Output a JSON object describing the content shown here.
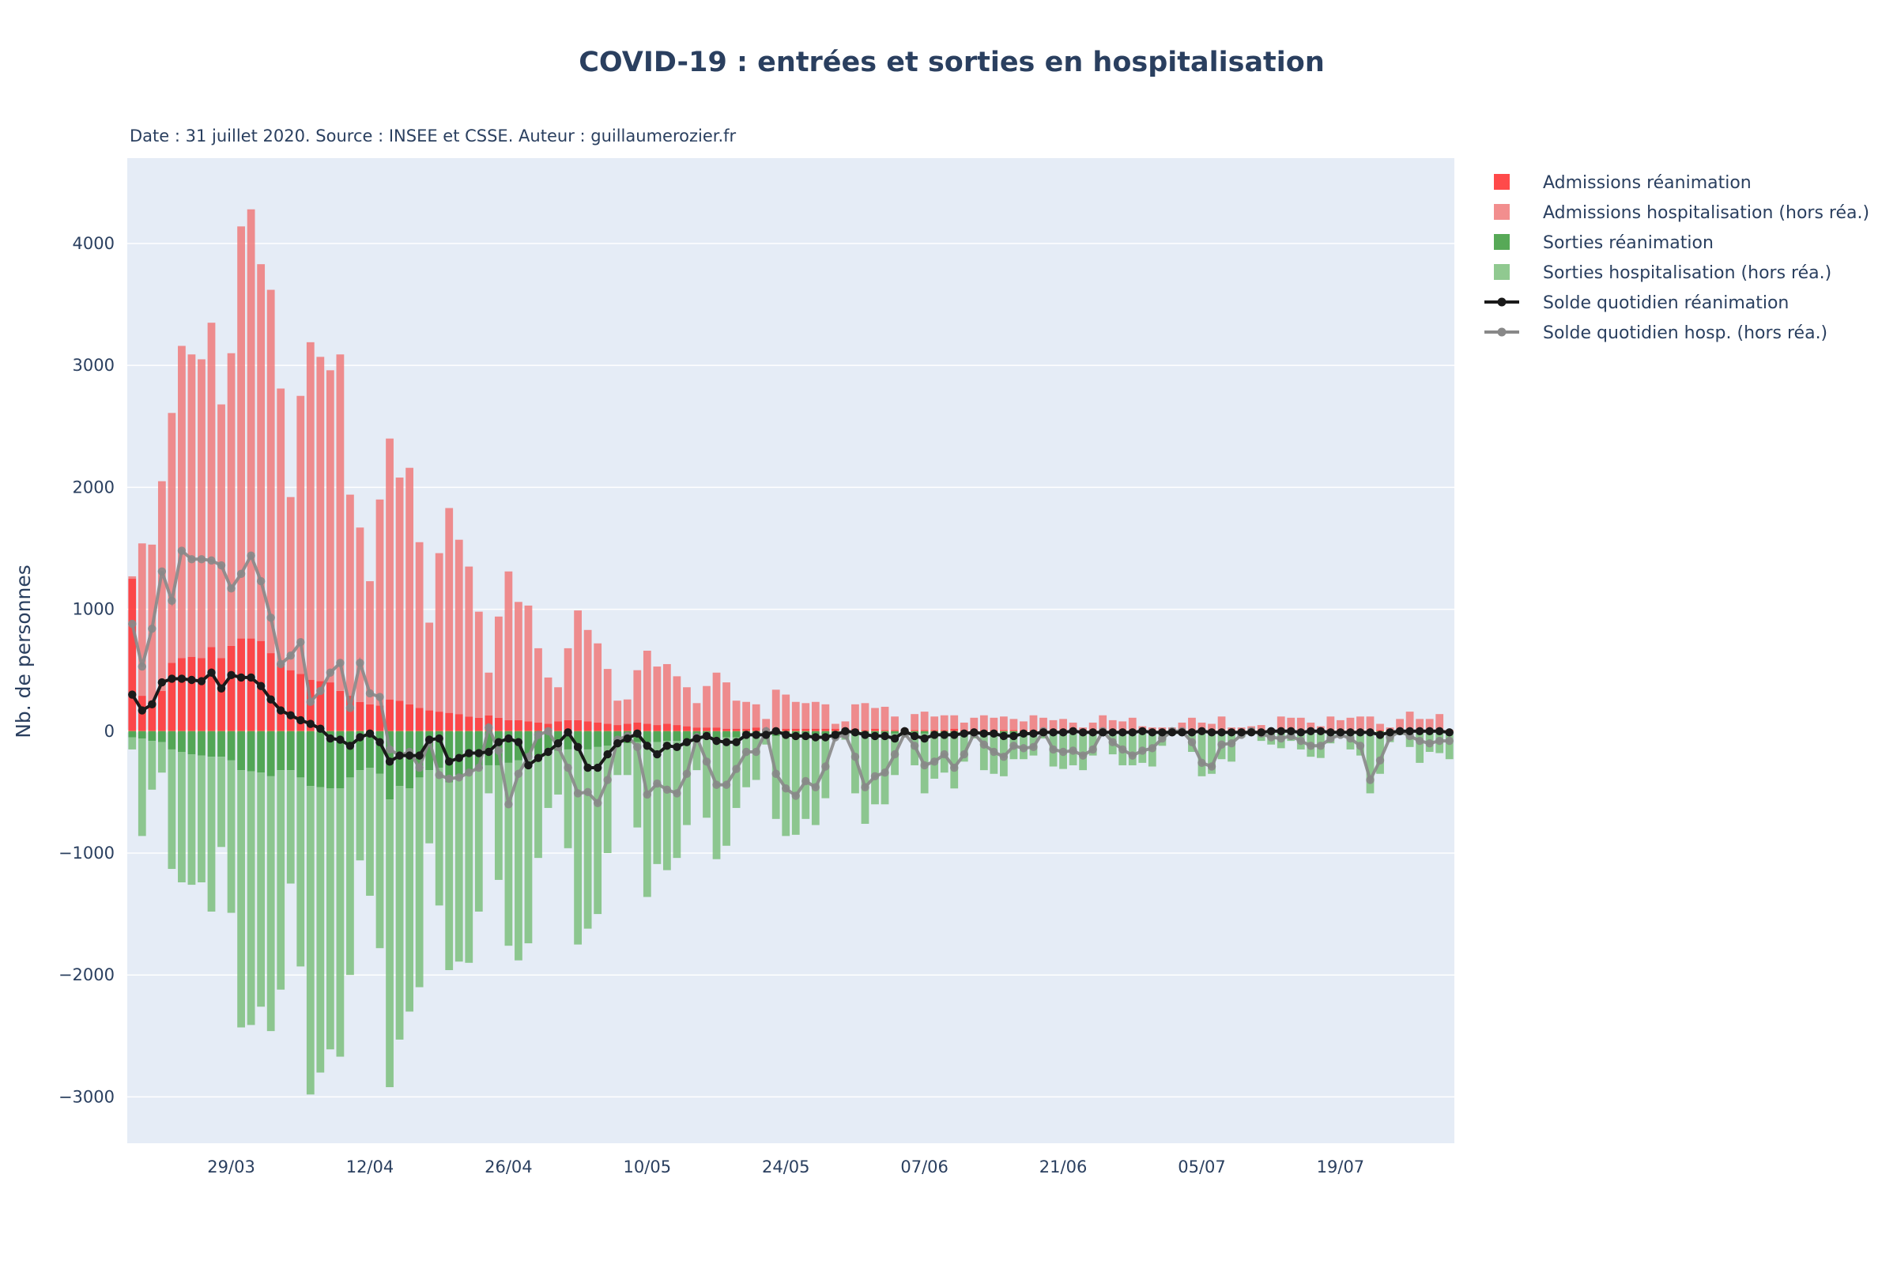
{
  "chart_data": {
    "type": "bar",
    "title": "COVID-19 : entrées et sorties en hospitalisation",
    "subtitle": "Date : 31 juillet 2020. Source : INSEE et CSSE. Auteur : guillaumerozier.fr",
    "ylabel": "Nb. de personnes",
    "xlabel": "",
    "x_start": "2020-03-19",
    "x_end": "2020-07-30",
    "x_tick_dates": [
      "2020-03-29",
      "2020-04-12",
      "2020-04-26",
      "2020-05-10",
      "2020-05-24",
      "2020-06-07",
      "2020-06-21",
      "2020-07-05",
      "2020-07-19"
    ],
    "x_tick_labels": [
      "29/03",
      "12/04",
      "26/04",
      "10/05",
      "24/05",
      "07/06",
      "21/06",
      "05/07",
      "19/07"
    ],
    "y_tick_values": [
      -3000,
      -2000,
      -1000,
      0,
      1000,
      2000,
      3000,
      4000
    ],
    "y_tick_labels": [
      "−3000",
      "−2000",
      "−1000",
      "0",
      "1000",
      "2000",
      "3000",
      "4000"
    ],
    "ylim": [
      -3380,
      4700
    ],
    "grid": true,
    "barmode": "relative",
    "legend_position": "right",
    "colors": {
      "admissions_rea": "#ff2a2a",
      "admissions_hosp": "#f07a7a",
      "sorties_rea": "#3a9a3a",
      "sorties_hosp": "#7cbf7c",
      "solde_rea": "#1a1a1a",
      "solde_hosp": "#888888",
      "plot_bg": "#e5ecf6",
      "grid": "#ffffff",
      "title": "#2a3f5f"
    },
    "series": [
      {
        "name": "Admissions réanimation",
        "type": "bar",
        "color_key": "admissions_rea",
        "values": [
          1250,
          290,
          250,
          330,
          560,
          600,
          610,
          600,
          690,
          600,
          700,
          760,
          760,
          740,
          640,
          560,
          500,
          470,
          420,
          410,
          400,
          330,
          290,
          240,
          220,
          210,
          260,
          250,
          220,
          190,
          170,
          160,
          150,
          140,
          120,
          110,
          130,
          110,
          90,
          90,
          80,
          70,
          60,
          80,
          90,
          90,
          80,
          70,
          60,
          50,
          60,
          70,
          60,
          50,
          60,
          50,
          40,
          30,
          30,
          30,
          20,
          20,
          20,
          30,
          20,
          20,
          20,
          20,
          20,
          20,
          20,
          20,
          20,
          20,
          10,
          20,
          10,
          10,
          10,
          10,
          10,
          10,
          10,
          20,
          10,
          10,
          10,
          10,
          10,
          10,
          10,
          10,
          10,
          10,
          10,
          10,
          10,
          10,
          10,
          10,
          10,
          10,
          10,
          10,
          10,
          10,
          10,
          10,
          10,
          10,
          10,
          10,
          10,
          10,
          10,
          10,
          10,
          10,
          10,
          10,
          10,
          10,
          10,
          10,
          10,
          10,
          10,
          10,
          10,
          10,
          10,
          10,
          10,
          10
        ]
      },
      {
        "name": "Admissions hospitalisation (hors réa.)",
        "type": "bar",
        "color_key": "admissions_hosp",
        "values": [
          20,
          1250,
          1280,
          1720,
          2050,
          2560,
          2480,
          2450,
          2660,
          2080,
          2400,
          3380,
          3520,
          3090,
          2980,
          2250,
          1420,
          2280,
          2770,
          2660,
          2560,
          2760,
          1650,
          1430,
          1010,
          1690,
          2140,
          1830,
          1940,
          1360,
          720,
          1300,
          1680,
          1430,
          1230,
          870,
          350,
          830,
          1220,
          970,
          950,
          610,
          380,
          280,
          590,
          900,
          750,
          650,
          450,
          200,
          200,
          430,
          600,
          480,
          490,
          400,
          320,
          200,
          340,
          450,
          380,
          230,
          220,
          190,
          80,
          320,
          280,
          220,
          210,
          220,
          200,
          40,
          60,
          200,
          220,
          170,
          190,
          110,
          10,
          130,
          150,
          110,
          120,
          110,
          60,
          100,
          120,
          100,
          110,
          90,
          70,
          120,
          100,
          80,
          90,
          60,
          20,
          60,
          120,
          80,
          70,
          100,
          30,
          20,
          20,
          20,
          60,
          100,
          60,
          50,
          110,
          20,
          20,
          30,
          40,
          10,
          110,
          100,
          100,
          60,
          30,
          110,
          80,
          100,
          110,
          110,
          50,
          20,
          90,
          150,
          90,
          90,
          130
        ]
      },
      {
        "name": "Sorties réanimation",
        "type": "bar",
        "color_key": "sorties_rea",
        "values": [
          -50,
          -60,
          -80,
          -90,
          -150,
          -170,
          -190,
          -200,
          -210,
          -210,
          -240,
          -320,
          -330,
          -340,
          -370,
          -320,
          -320,
          -380,
          -450,
          -460,
          -470,
          -470,
          -380,
          -320,
          -300,
          -350,
          -560,
          -450,
          -470,
          -380,
          -320,
          -300,
          -420,
          -360,
          -340,
          -310,
          -280,
          -280,
          -260,
          -240,
          -210,
          -200,
          -180,
          -160,
          -150,
          -150,
          -150,
          -130,
          -120,
          -110,
          -100,
          -90,
          -90,
          -90,
          -80,
          -80,
          -70,
          -60,
          -60,
          -60,
          -50,
          -50,
          -50,
          -40,
          -40,
          -40,
          -40,
          -30,
          -30,
          -30,
          -30,
          -30,
          -30,
          -30,
          -20,
          -20,
          -20,
          -20,
          -20,
          -20,
          -20,
          -20,
          -20,
          -20,
          -20,
          -20,
          -20,
          -20,
          -20,
          -20,
          -10,
          -10,
          -10,
          -10,
          -10,
          -10,
          -10,
          -10,
          -10,
          -10,
          -10,
          -10,
          -10,
          -10,
          -10,
          -10,
          -10,
          -10,
          -10,
          -10,
          -10,
          -10,
          -10,
          -10,
          -10,
          -10,
          -10,
          -10,
          -10,
          -10,
          -10,
          -10,
          -10,
          -10,
          -10,
          -10,
          -10,
          -10,
          -10,
          -10,
          -10,
          -10,
          -10,
          -10
        ]
      },
      {
        "name": "Sorties hospitalisation (hors réa.)",
        "type": "bar",
        "color_key": "sorties_hosp",
        "values": [
          -100,
          -800,
          -400,
          -250,
          -980,
          -1070,
          -1070,
          -1040,
          -1270,
          -740,
          -1250,
          -2110,
          -2080,
          -1920,
          -2090,
          -1800,
          -930,
          -1550,
          -2530,
          -2340,
          -2140,
          -2200,
          -1620,
          -740,
          -1050,
          -1430,
          -2360,
          -2080,
          -1830,
          -1720,
          -600,
          -1130,
          -1540,
          -1530,
          -1560,
          -1170,
          -230,
          -940,
          -1500,
          -1640,
          -1530,
          -840,
          -450,
          -360,
          -810,
          -1600,
          -1470,
          -1370,
          -880,
          -250,
          -260,
          -700,
          -1270,
          -1000,
          -1060,
          -960,
          -700,
          -260,
          -650,
          -990,
          -890,
          -580,
          -410,
          -360,
          -70,
          -680,
          -820,
          -820,
          -690,
          -740,
          -520,
          -30,
          -40,
          -480,
          -740,
          -580,
          -580,
          -340,
          -20,
          -260,
          -490,
          -370,
          -320,
          -450,
          -230,
          -40,
          -300,
          -330,
          -350,
          -210,
          -220,
          -190,
          -50,
          -280,
          -300,
          -270,
          -310,
          -190,
          -30,
          -180,
          -270,
          -270,
          -250,
          -280,
          -110,
          -20,
          -20,
          -160,
          -360,
          -340,
          -220,
          -240,
          -40,
          -20,
          -70,
          -100,
          -130,
          -70,
          -140,
          -200,
          -210,
          -90,
          -40,
          -140,
          -190,
          -500,
          -340,
          -80,
          -20,
          -120,
          -250,
          -160,
          -170,
          -220
        ]
      },
      {
        "name": "Solde quotidien réanimation",
        "type": "line",
        "color_key": "solde_rea",
        "values": [
          300,
          170,
          220,
          400,
          430,
          430,
          420,
          410,
          480,
          350,
          460,
          440,
          440,
          370,
          260,
          170,
          130,
          90,
          60,
          20,
          -60,
          -70,
          -120,
          -50,
          -20,
          -90,
          -250,
          -200,
          -200,
          -200,
          -70,
          -60,
          -250,
          -220,
          -180,
          -180,
          -170,
          -90,
          -60,
          -90,
          -280,
          -220,
          -170,
          -100,
          -10,
          -130,
          -300,
          -300,
          -190,
          -100,
          -60,
          -20,
          -120,
          -190,
          -120,
          -130,
          -90,
          -60,
          -40,
          -80,
          -90,
          -90,
          -30,
          -30,
          -30,
          0,
          -30,
          -40,
          -40,
          -50,
          -50,
          -30,
          0,
          -10,
          -30,
          -40,
          -40,
          -60,
          0,
          -40,
          -60,
          -30,
          -30,
          -30,
          -20,
          -10,
          -20,
          -20,
          -40,
          -40,
          -20,
          -20,
          -10,
          -10,
          -10,
          0,
          -10,
          -10,
          -10,
          -10,
          -10,
          -10,
          0,
          -10,
          -10,
          -10,
          -10,
          -10,
          0,
          -10,
          -10,
          -10,
          -10,
          -10,
          -10,
          0,
          0,
          0,
          -10,
          0,
          0,
          -10,
          -10,
          -10,
          -10,
          -10,
          -30,
          -10,
          0,
          0,
          0,
          0,
          0,
          -10,
          -10,
          -10,
          0
        ]
      },
      {
        "name": "Solde quotidien hosp. (hors réa.)",
        "type": "line",
        "color_key": "solde_hosp",
        "values": [
          880,
          530,
          840,
          1310,
          1070,
          1480,
          1410,
          1410,
          1400,
          1360,
          1170,
          1290,
          1440,
          1230,
          930,
          550,
          620,
          730,
          240,
          330,
          480,
          560,
          190,
          560,
          310,
          280,
          -150,
          -200,
          -170,
          -300,
          -80,
          -360,
          -390,
          -380,
          -340,
          -300,
          30,
          -160,
          -600,
          -350,
          -210,
          -30,
          0,
          -130,
          -300,
          -510,
          -500,
          -590,
          -400,
          -70,
          -40,
          -130,
          -520,
          -430,
          -480,
          -510,
          -350,
          -50,
          -250,
          -440,
          -440,
          -310,
          -170,
          -170,
          0,
          -350,
          -470,
          -530,
          -410,
          -460,
          -290,
          -50,
          -30,
          -210,
          -460,
          -370,
          -340,
          -190,
          -20,
          -120,
          -280,
          -250,
          -190,
          -300,
          -190,
          -20,
          -110,
          -170,
          -210,
          -120,
          -140,
          -130,
          0,
          -150,
          -170,
          -160,
          -200,
          -150,
          0,
          -90,
          -150,
          -200,
          -160,
          -140,
          -60,
          0,
          0,
          -90,
          -260,
          -290,
          -110,
          -100,
          -30,
          0,
          -20,
          -50,
          -60,
          -40,
          -80,
          -120,
          -120,
          -60,
          -30,
          -60,
          -120,
          -400,
          -240,
          -50,
          0,
          -40,
          -80,
          -100,
          -80,
          -80
        ]
      }
    ]
  }
}
